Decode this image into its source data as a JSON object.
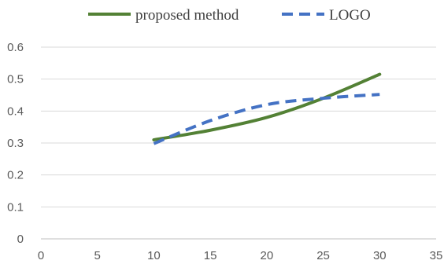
{
  "chart_data": {
    "type": "line",
    "title": "",
    "xlabel": "",
    "ylabel": "",
    "xlim": [
      0,
      35
    ],
    "ylim": [
      0,
      0.6
    ],
    "x_ticks": [
      "0",
      "5",
      "10",
      "15",
      "20",
      "25",
      "30",
      "35"
    ],
    "y_ticks": [
      "0",
      "0.1",
      "0.2",
      "0.3",
      "0.4",
      "0.5",
      "0.6"
    ],
    "grid": "horizontal",
    "legend": "top",
    "series": [
      {
        "name": "proposed method",
        "color": "#538135",
        "style": "solid",
        "x": [
          10,
          15,
          20,
          25,
          30
        ],
        "y": [
          0.31,
          0.34,
          0.38,
          0.44,
          0.515
        ]
      },
      {
        "name": "LOGO",
        "color": "#4472c4",
        "style": "dashed",
        "x": [
          10,
          15,
          20,
          25,
          30
        ],
        "y": [
          0.298,
          0.37,
          0.42,
          0.44,
          0.452
        ]
      }
    ]
  }
}
